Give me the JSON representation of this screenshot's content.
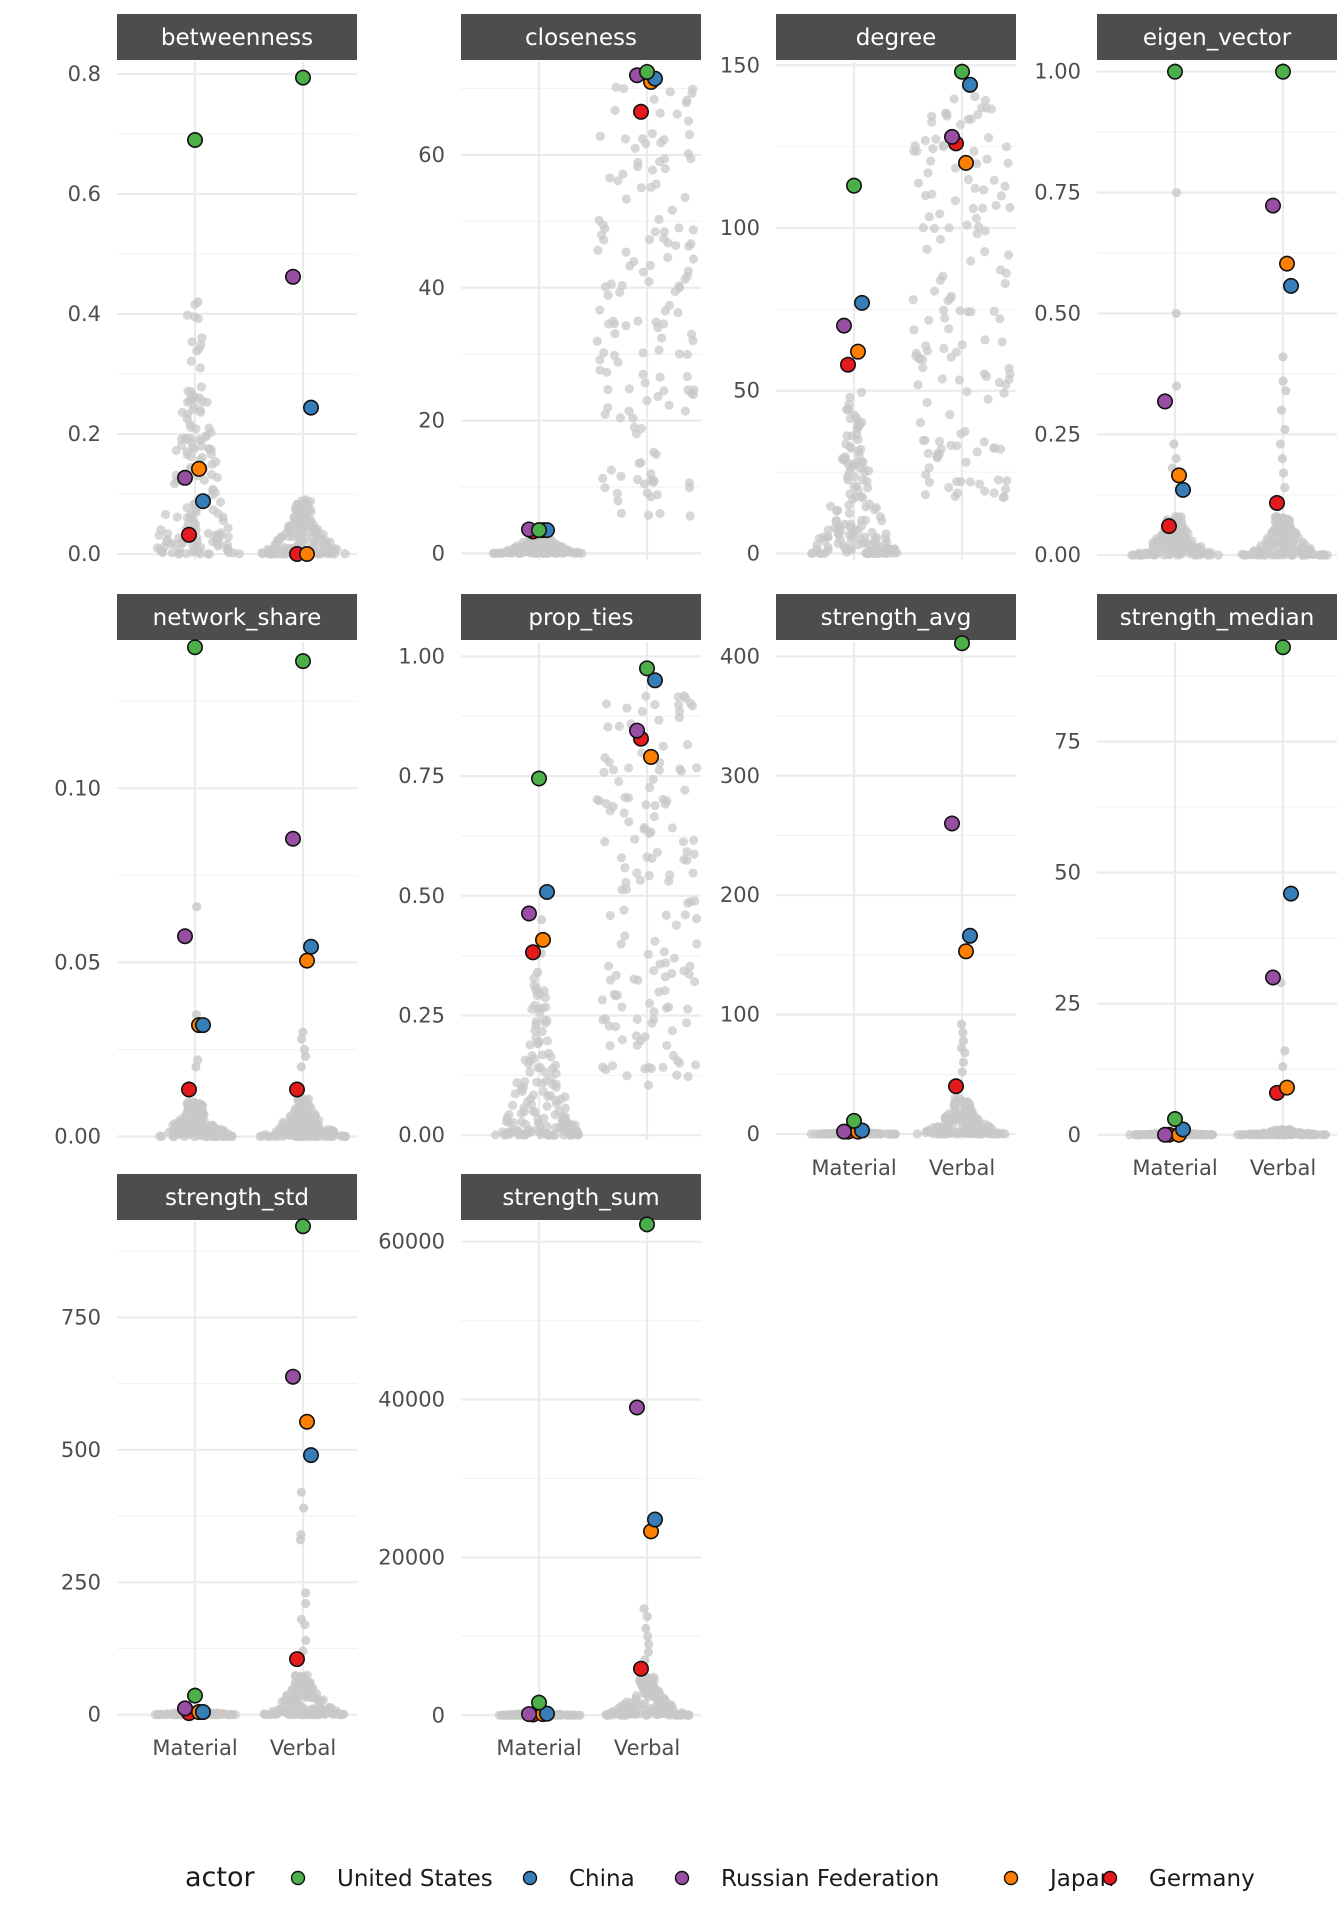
{
  "chart_data": {
    "type": "scatter",
    "subtype": "faceted beeswarm",
    "categories": [
      "Material",
      "Verbal"
    ],
    "background_color": "#c8c8c8",
    "legend": {
      "title": "actor",
      "position": "bottom",
      "entries": [
        {
          "name": "United States",
          "color": "#4daf4a"
        },
        {
          "name": "China",
          "color": "#377eb8"
        },
        {
          "name": "Russian Federation",
          "color": "#984ea3"
        },
        {
          "name": "Japan",
          "color": "#ff7f00"
        },
        {
          "name": "Germany",
          "color": "#e41a1c"
        }
      ]
    },
    "facets": [
      {
        "title": "betweenness",
        "ylim": [
          -0.01,
          0.82
        ],
        "ticks": [
          0,
          0.2,
          0.4,
          0.6,
          0.8
        ],
        "tick_labels": [
          "0.0",
          "0.2",
          "0.4",
          "0.6",
          "0.8"
        ],
        "background": {
          "Material": {
            "max": 0.42,
            "outliers": [
              0.42,
              0.07,
              0.05,
              0.04
            ]
          },
          "Verbal": {
            "max": 0.09,
            "outliers": [
              0.09,
              0.06,
              0.05
            ]
          }
        },
        "highlights": {
          "Material": {
            "United States": 0.69,
            "China": 0.088,
            "Russian Federation": 0.127,
            "Japan": 0.142,
            "Germany": 0.032
          },
          "Verbal": {
            "United States": 0.794,
            "China": 0.244,
            "Russian Federation": 0.462,
            "Japan": 0.0,
            "Germany": 0.0
          }
        }
      },
      {
        "title": "closeness",
        "ylim": [
          -1,
          74
        ],
        "ticks": [
          0,
          20,
          40,
          60
        ],
        "tick_labels": [
          "0",
          "20",
          "40",
          "60"
        ],
        "background": {
          "Material": {
            "max": 3.5,
            "outliers": []
          },
          "Verbal": {
            "max": 72,
            "min": 5.5,
            "outliers": []
          }
        },
        "highlights": {
          "Material": {
            "United States": 3.5,
            "China": 3.5,
            "Russian Federation": 3.6,
            "Japan": 3.5,
            "Germany": 3.3
          },
          "Verbal": {
            "United States": 72.5,
            "China": 71.5,
            "Russian Federation": 72,
            "Japan": 71,
            "Germany": 66.5
          }
        }
      },
      {
        "title": "degree",
        "ylim": [
          -2,
          151
        ],
        "ticks": [
          0,
          50,
          100,
          150
        ],
        "tick_labels": [
          "0",
          "50",
          "100",
          "150"
        ],
        "background": {
          "Material": {
            "max": 50,
            "outliers": []
          },
          "Verbal": {
            "max": 141,
            "min": 17,
            "outliers": []
          }
        },
        "highlights": {
          "Material": {
            "United States": 113,
            "China": 77,
            "Russian Federation": 70,
            "Japan": 62,
            "Germany": 58
          },
          "Verbal": {
            "United States": 148,
            "China": 144,
            "Russian Federation": 128,
            "Japan": 120,
            "Germany": 126
          }
        }
      },
      {
        "title": "eigen_vector",
        "ylim": [
          -0.01,
          1.02
        ],
        "ticks": [
          0,
          0.25,
          0.5,
          0.75,
          1.0
        ],
        "tick_labels": [
          "0.00",
          "0.25",
          "0.50",
          "0.75",
          "1.00"
        ],
        "background": {
          "Material": {
            "max": 0.08,
            "outliers": [
              0.75,
              0.5,
              0.35,
              0.23,
              0.2,
              0.18
            ]
          },
          "Verbal": {
            "max": 0.08,
            "outliers": [
              0.41,
              0.36,
              0.34,
              0.3,
              0.26,
              0.23,
              0.2,
              0.17,
              0.14
            ]
          }
        },
        "highlights": {
          "Material": {
            "United States": 1.0,
            "China": 0.135,
            "Russian Federation": 0.318,
            "Japan": 0.165,
            "Germany": 0.06
          },
          "Verbal": {
            "United States": 1.0,
            "China": 0.557,
            "Russian Federation": 0.723,
            "Japan": 0.603,
            "Germany": 0.108
          }
        }
      },
      {
        "title": "network_share",
        "ylim": [
          -0.001,
          0.142
        ],
        "ticks": [
          0,
          0.05,
          0.1
        ],
        "tick_labels": [
          "0.00",
          "0.05",
          "0.10"
        ],
        "background": {
          "Material": {
            "max": 0.01,
            "outliers": [
              0.066,
              0.035,
              0.033,
              0.022,
              0.02
            ]
          },
          "Verbal": {
            "max": 0.011,
            "outliers": [
              0.03,
              0.028,
              0.025,
              0.023,
              0.02
            ]
          }
        },
        "highlights": {
          "Material": {
            "United States": 0.1405,
            "China": 0.032,
            "Russian Federation": 0.0575,
            "Japan": 0.032,
            "Germany": 0.0135
          },
          "Verbal": {
            "United States": 0.1365,
            "China": 0.0545,
            "Russian Federation": 0.0855,
            "Japan": 0.0505,
            "Germany": 0.0135
          }
        }
      },
      {
        "title": "prop_ties",
        "ylim": [
          -0.01,
          1.03
        ],
        "ticks": [
          0,
          0.25,
          0.5,
          0.75,
          1.0
        ],
        "tick_labels": [
          "0.00",
          "0.25",
          "0.50",
          "0.75",
          "1.00"
        ],
        "background": {
          "Material": {
            "max": 0.33,
            "outliers": [
              0.45,
              0.38,
              0.34
            ]
          },
          "Verbal": {
            "max": 0.92,
            "min": 0.1,
            "outliers": []
          }
        },
        "highlights": {
          "Material": {
            "United States": 0.745,
            "China": 0.508,
            "Russian Federation": 0.463,
            "Japan": 0.408,
            "Germany": 0.382
          },
          "Verbal": {
            "United States": 0.975,
            "China": 0.95,
            "Russian Federation": 0.845,
            "Japan": 0.79,
            "Germany": 0.828
          }
        }
      },
      {
        "title": "strength_avg",
        "ylim": [
          -5,
          412
        ],
        "ticks": [
          0,
          100,
          200,
          300,
          400
        ],
        "tick_labels": [
          "0",
          "100",
          "200",
          "300",
          "400"
        ],
        "background": {
          "Material": {
            "max": 2,
            "outliers": []
          },
          "Verbal": {
            "max": 30,
            "outliers": [
              92,
              85,
              78,
              72,
              68,
              60,
              52
            ]
          }
        },
        "highlights": {
          "Material": {
            "United States": 11,
            "China": 3,
            "Russian Federation": 2,
            "Japan": 2,
            "Germany": 2
          },
          "Verbal": {
            "United States": 411,
            "China": 166,
            "Russian Federation": 260,
            "Japan": 153,
            "Germany": 40
          }
        }
      },
      {
        "title": "strength_median",
        "ylim": [
          -1,
          94
        ],
        "ticks": [
          0,
          25,
          50,
          75
        ],
        "tick_labels": [
          "0",
          "25",
          "50",
          "75"
        ],
        "background": {
          "Material": {
            "max": 0.5,
            "outliers": []
          },
          "Verbal": {
            "max": 1,
            "outliers": [
              29,
              16,
              13
            ]
          }
        },
        "highlights": {
          "Material": {
            "United States": 3,
            "China": 1,
            "Russian Federation": 0,
            "Japan": 0,
            "Germany": 0
          },
          "Verbal": {
            "United States": 93,
            "China": 46,
            "Russian Federation": 30,
            "Japan": 9,
            "Germany": 8
          }
        }
      },
      {
        "title": "strength_std",
        "ylim": [
          -10,
          930
        ],
        "ticks": [
          0,
          250,
          500,
          750
        ],
        "tick_labels": [
          "0",
          "250",
          "500",
          "750"
        ],
        "background": {
          "Material": {
            "max": 10,
            "outliers": []
          },
          "Verbal": {
            "max": 75,
            "outliers": [
              420,
              390,
              340,
              330,
              230,
              210,
              180,
              170,
              140,
              120
            ]
          }
        },
        "highlights": {
          "Material": {
            "United States": 36,
            "China": 5,
            "Russian Federation": 12,
            "Japan": 5,
            "Germany": 3
          },
          "Verbal": {
            "United States": 922,
            "China": 490,
            "Russian Federation": 638,
            "Japan": 553,
            "Germany": 105
          }
        }
      },
      {
        "title": "strength_sum",
        "ylim": [
          -600,
          62500
        ],
        "ticks": [
          0,
          20000,
          40000,
          60000
        ],
        "tick_labels": [
          "0",
          "20000",
          "40000",
          "60000"
        ],
        "background": {
          "Material": {
            "max": 400,
            "outliers": []
          },
          "Verbal": {
            "max": 5000,
            "outliers": [
              13500,
              12500,
              11000,
              10000,
              9000,
              8000,
              7000
            ]
          }
        },
        "highlights": {
          "Material": {
            "United States": 1600,
            "China": 200,
            "Russian Federation": 150,
            "Japan": 150,
            "Germany": 100
          },
          "Verbal": {
            "United States": 62200,
            "China": 24800,
            "Russian Federation": 39000,
            "Japan": 23300,
            "Germany": 5900
          }
        }
      }
    ]
  }
}
